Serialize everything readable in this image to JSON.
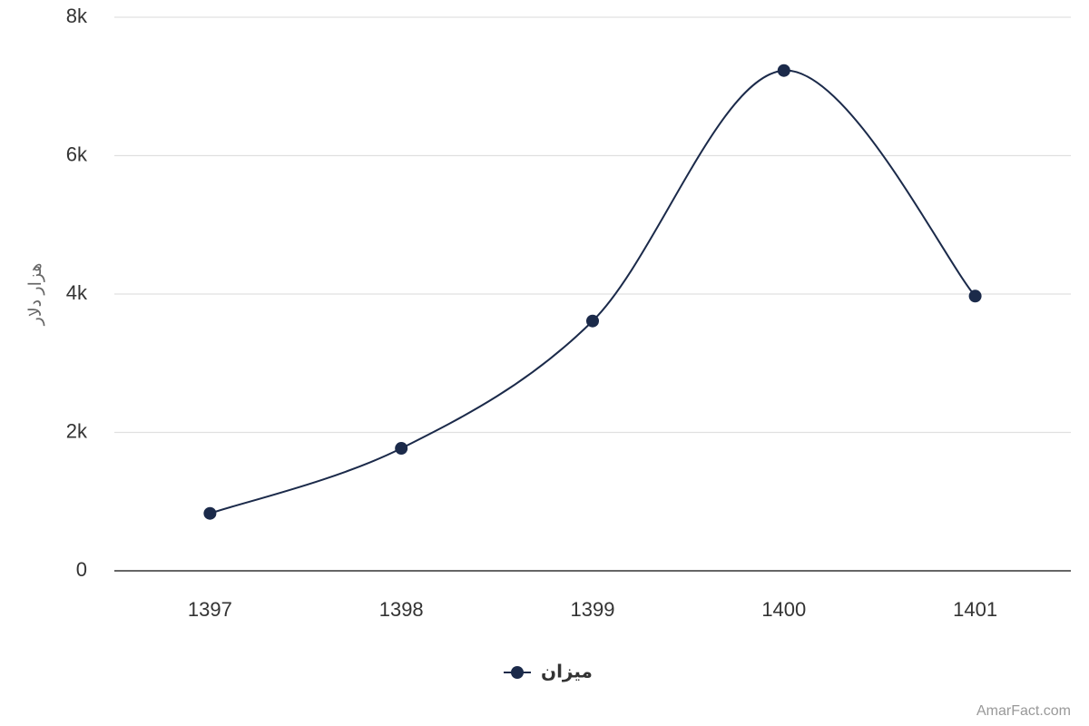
{
  "chart_data": {
    "type": "line",
    "y_axis_title": "هزار دلار",
    "categories": [
      "1397",
      "1398",
      "1399",
      "1400",
      "1401"
    ],
    "series": [
      {
        "name": "میزان",
        "color": "#1b2a4a",
        "values": [
          830,
          1770,
          3610,
          7230,
          3970
        ]
      }
    ],
    "ylim": [
      0,
      8000
    ],
    "yticks": [
      0,
      {
        "value": 2000,
        "label": "2k"
      },
      {
        "value": 4000,
        "label": "4k"
      },
      {
        "value": 6000,
        "label": "6k"
      },
      {
        "value": 8000,
        "label": "8k"
      }
    ],
    "grid": true,
    "smooth": true,
    "legend": "bottom",
    "credit": "AmarFact.com"
  }
}
